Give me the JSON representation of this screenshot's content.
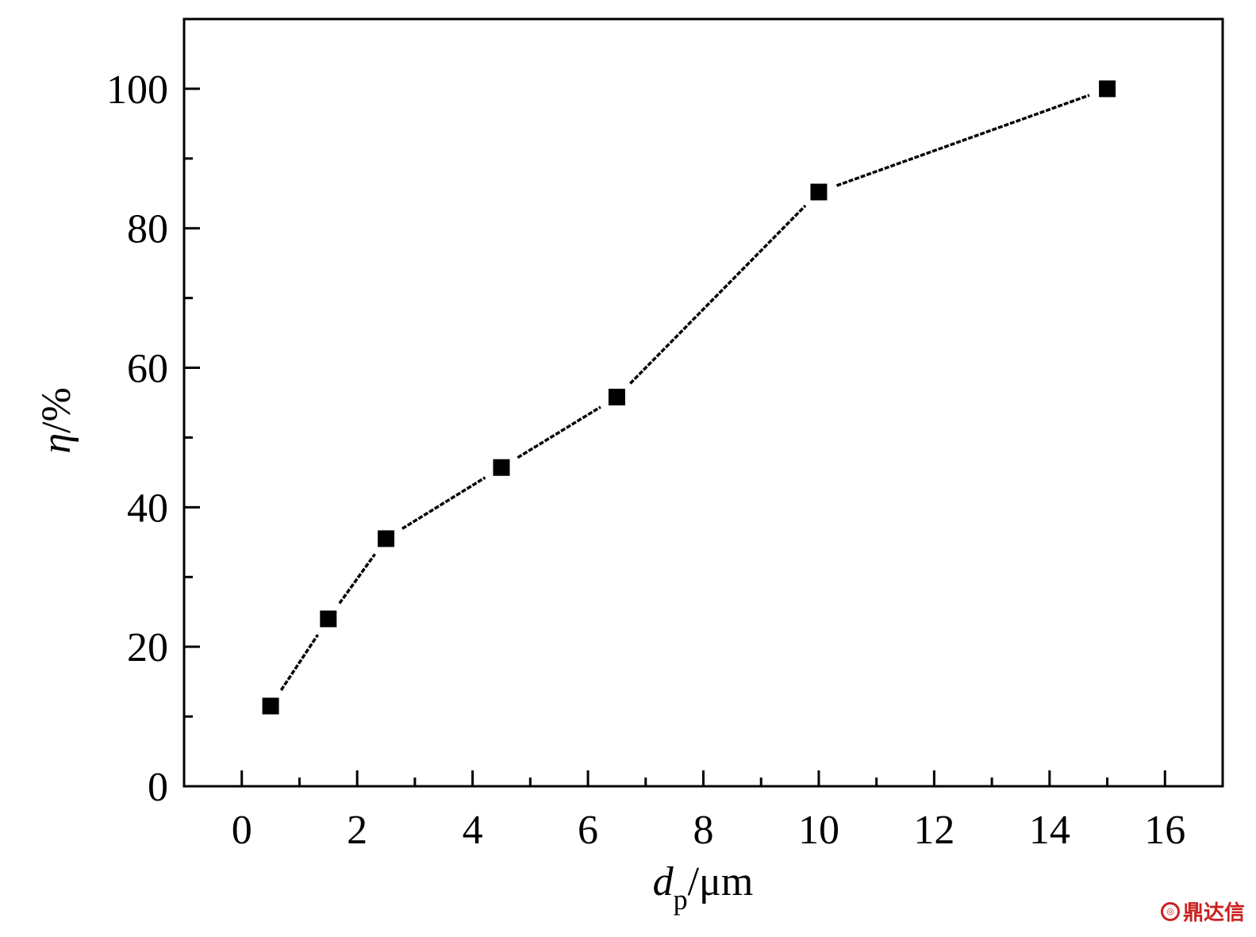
{
  "chart_data": {
    "type": "line",
    "x": [
      0.5,
      1.5,
      2.5,
      4.5,
      6.5,
      10,
      15
    ],
    "series": [
      {
        "values": [
          11.5,
          24,
          35.5,
          45.7,
          55.8,
          85.2,
          100
        ],
        "color": "#000000",
        "marker": "square"
      }
    ],
    "xlabel": {
      "symbol": "d",
      "subscript": "p",
      "unit": "/μm"
    },
    "ylabel": {
      "symbol": "η",
      "unit": "/%"
    },
    "xlim": [
      -1,
      17
    ],
    "ylim": [
      0,
      110
    ],
    "xticks": [
      "0",
      "2",
      "4",
      "6",
      "8",
      "10",
      "12",
      "14",
      "16"
    ],
    "yticks": [
      "0",
      "20",
      "40",
      "60",
      "80",
      "100"
    ],
    "grid": false,
    "legend": "none"
  },
  "watermark": {
    "text": "鼎达信",
    "icon": "logo-icon"
  }
}
